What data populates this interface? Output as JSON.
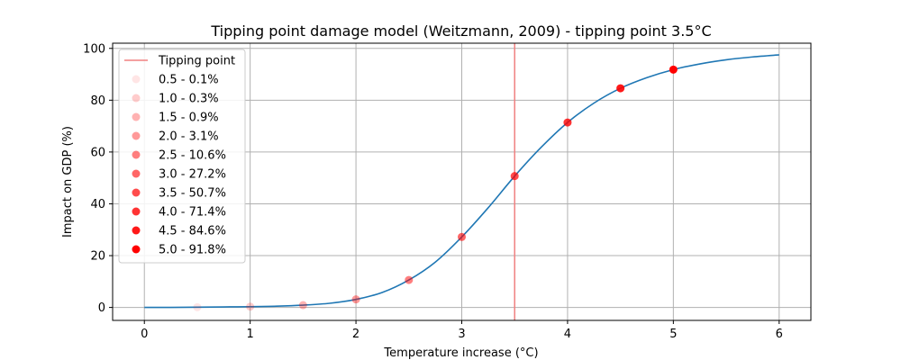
{
  "chart_data": {
    "type": "line",
    "title": "Tipping point damage model (Weitzmann, 2009) - tipping point 3.5°C",
    "xlabel": "Temperature increase (°C)",
    "ylabel": "Impact on GDP (%)",
    "xlim": [
      -0.3,
      6.3
    ],
    "ylim": [
      -5,
      102
    ],
    "xticks": [
      0,
      1,
      2,
      3,
      4,
      5,
      6
    ],
    "yticks": [
      0,
      20,
      40,
      60,
      80,
      100
    ],
    "grid": true,
    "legend_position": "top-left",
    "tipping_point": {
      "x": 3.5,
      "label": "Tipping point",
      "color": "#f08080"
    },
    "curve": {
      "color": "#1f77b4",
      "x": [
        0,
        0.25,
        0.5,
        0.75,
        1,
        1.25,
        1.5,
        1.75,
        2,
        2.25,
        2.5,
        2.75,
        3,
        3.25,
        3.5,
        3.75,
        4,
        4.25,
        4.5,
        4.75,
        5,
        5.25,
        5.5,
        5.75,
        6
      ],
      "y": [
        0,
        0.02,
        0.1,
        0.2,
        0.3,
        0.5,
        0.9,
        1.6,
        3.1,
        5.8,
        10.6,
        17.5,
        27.2,
        38.5,
        50.7,
        61.8,
        71.4,
        78.9,
        84.6,
        88.7,
        91.8,
        94.0,
        95.6,
        96.7,
        97.5
      ]
    },
    "points": {
      "color": "#ff0000",
      "series": [
        {
          "name": "0.5 - 0.1%",
          "x": 0.5,
          "y": 0.1,
          "alpha": 0.1
        },
        {
          "name": "1.0 - 0.3%",
          "x": 1.0,
          "y": 0.3,
          "alpha": 0.2
        },
        {
          "name": "1.5 - 0.9%",
          "x": 1.5,
          "y": 0.9,
          "alpha": 0.3
        },
        {
          "name": "2.0 - 3.1%",
          "x": 2.0,
          "y": 3.1,
          "alpha": 0.4
        },
        {
          "name": "2.5 - 10.6%",
          "x": 2.5,
          "y": 10.6,
          "alpha": 0.5
        },
        {
          "name": "3.0 - 27.2%",
          "x": 3.0,
          "y": 27.2,
          "alpha": 0.6
        },
        {
          "name": "3.5 - 50.7%",
          "x": 3.5,
          "y": 50.7,
          "alpha": 0.7
        },
        {
          "name": "4.0 - 71.4%",
          "x": 4.0,
          "y": 71.4,
          "alpha": 0.8
        },
        {
          "name": "4.5 - 84.6%",
          "x": 4.5,
          "y": 84.6,
          "alpha": 0.9
        },
        {
          "name": "5.0 - 91.8%",
          "x": 5.0,
          "y": 91.8,
          "alpha": 1.0
        }
      ]
    }
  }
}
